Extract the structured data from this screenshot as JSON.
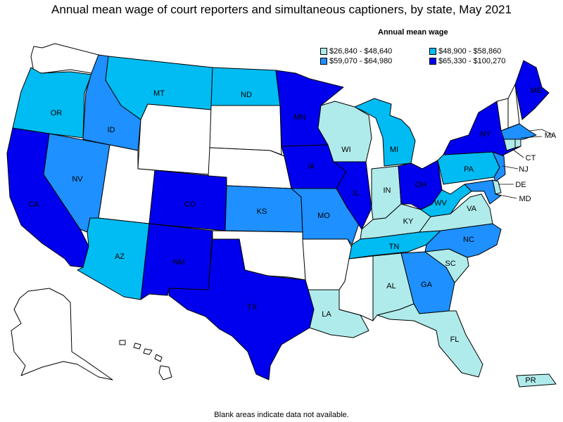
{
  "title": "Annual mean wage of court reporters and simultaneous captioners, by state, May 2021",
  "legend": {
    "title": "Annual mean wage",
    "items": [
      {
        "label": "$26,840 - $48,640",
        "color": "#b0ebeb"
      },
      {
        "label": "$48,900 - $58,860",
        "color": "#00bcf2"
      },
      {
        "label": "$59,070 - $64,980",
        "color": "#1e90ff"
      },
      {
        "label": "$65,330 - $100,270",
        "color": "#0000ee"
      }
    ]
  },
  "colors": {
    "no_data": "#ffffff"
  },
  "states": {
    "WA": {
      "label": "",
      "bin": null
    },
    "OR": {
      "label": "OR",
      "bin": 1
    },
    "CA": {
      "label": "CA",
      "bin": 3
    },
    "NV": {
      "label": "NV",
      "bin": 2
    },
    "ID": {
      "label": "ID",
      "bin": 2
    },
    "MT": {
      "label": "MT",
      "bin": 1
    },
    "WY": {
      "label": "",
      "bin": null
    },
    "UT": {
      "label": "",
      "bin": null
    },
    "AZ": {
      "label": "AZ",
      "bin": 1
    },
    "CO": {
      "label": "CO",
      "bin": 3
    },
    "NM": {
      "label": "NM",
      "bin": 3
    },
    "ND": {
      "label": "ND",
      "bin": 1
    },
    "SD": {
      "label": "",
      "bin": null
    },
    "NE": {
      "label": "",
      "bin": null
    },
    "KS": {
      "label": "KS",
      "bin": 2
    },
    "OK": {
      "label": "",
      "bin": null
    },
    "TX": {
      "label": "TX",
      "bin": 3
    },
    "MN": {
      "label": "MN",
      "bin": 3
    },
    "IA": {
      "label": "IA",
      "bin": 3
    },
    "MO": {
      "label": "MO",
      "bin": 2
    },
    "AR": {
      "label": "",
      "bin": null
    },
    "LA": {
      "label": "LA",
      "bin": 0
    },
    "WI": {
      "label": "WI",
      "bin": 0
    },
    "IL": {
      "label": "IL",
      "bin": 3
    },
    "MI": {
      "label": "MI",
      "bin": 1
    },
    "IN": {
      "label": "IN",
      "bin": 0
    },
    "OH": {
      "label": "OH",
      "bin": 3
    },
    "KY": {
      "label": "KY",
      "bin": 0
    },
    "TN": {
      "label": "TN",
      "bin": 1
    },
    "MS": {
      "label": "",
      "bin": null
    },
    "AL": {
      "label": "AL",
      "bin": 0
    },
    "GA": {
      "label": "GA",
      "bin": 2
    },
    "FL": {
      "label": "FL",
      "bin": 0
    },
    "SC": {
      "label": "SC",
      "bin": 0
    },
    "NC": {
      "label": "NC",
      "bin": 2
    },
    "VA": {
      "label": "VA",
      "bin": 0
    },
    "WV": {
      "label": "WV",
      "bin": 1
    },
    "PA": {
      "label": "PA",
      "bin": 1
    },
    "NY": {
      "label": "NY",
      "bin": 3
    },
    "VT": {
      "label": "",
      "bin": null
    },
    "NH": {
      "label": "",
      "bin": null
    },
    "ME": {
      "label": "ME",
      "bin": 3
    },
    "MA": {
      "label": "MA",
      "bin": 2
    },
    "CT": {
      "label": "CT",
      "bin": 0
    },
    "RI": {
      "label": "",
      "bin": 0
    },
    "NJ": {
      "label": "NJ",
      "bin": 2
    },
    "DE": {
      "label": "DE",
      "bin": 0
    },
    "MD": {
      "label": "MD",
      "bin": 2
    },
    "AK": {
      "label": "",
      "bin": null
    },
    "HI": {
      "label": "",
      "bin": null
    },
    "PR": {
      "label": "PR",
      "bin": 0
    }
  },
  "note": "Blank areas indicate data not available."
}
